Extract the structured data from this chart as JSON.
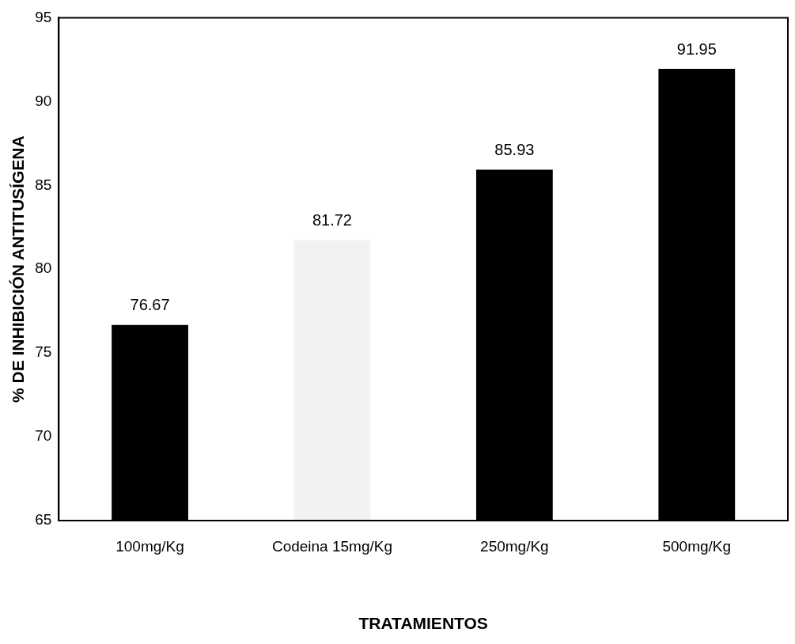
{
  "chart_data": {
    "type": "bar",
    "xlabel": "TRATAMIENTOS",
    "ylabel": "% DE INHIBICIÓN ANTITUSÍGENA",
    "categories": [
      "100mg/Kg",
      "Codeina 15mg/Kg",
      "250mg/Kg",
      "500mg/Kg"
    ],
    "values": [
      76.67,
      81.72,
      85.93,
      91.95
    ],
    "colors": [
      "#000000",
      "#f2f2f2",
      "#000000",
      "#000000"
    ],
    "ylim": [
      65,
      95
    ],
    "yticks": [
      65,
      70,
      75,
      80,
      85,
      90,
      95
    ],
    "grid": false,
    "legend": false,
    "data_labels": true
  }
}
